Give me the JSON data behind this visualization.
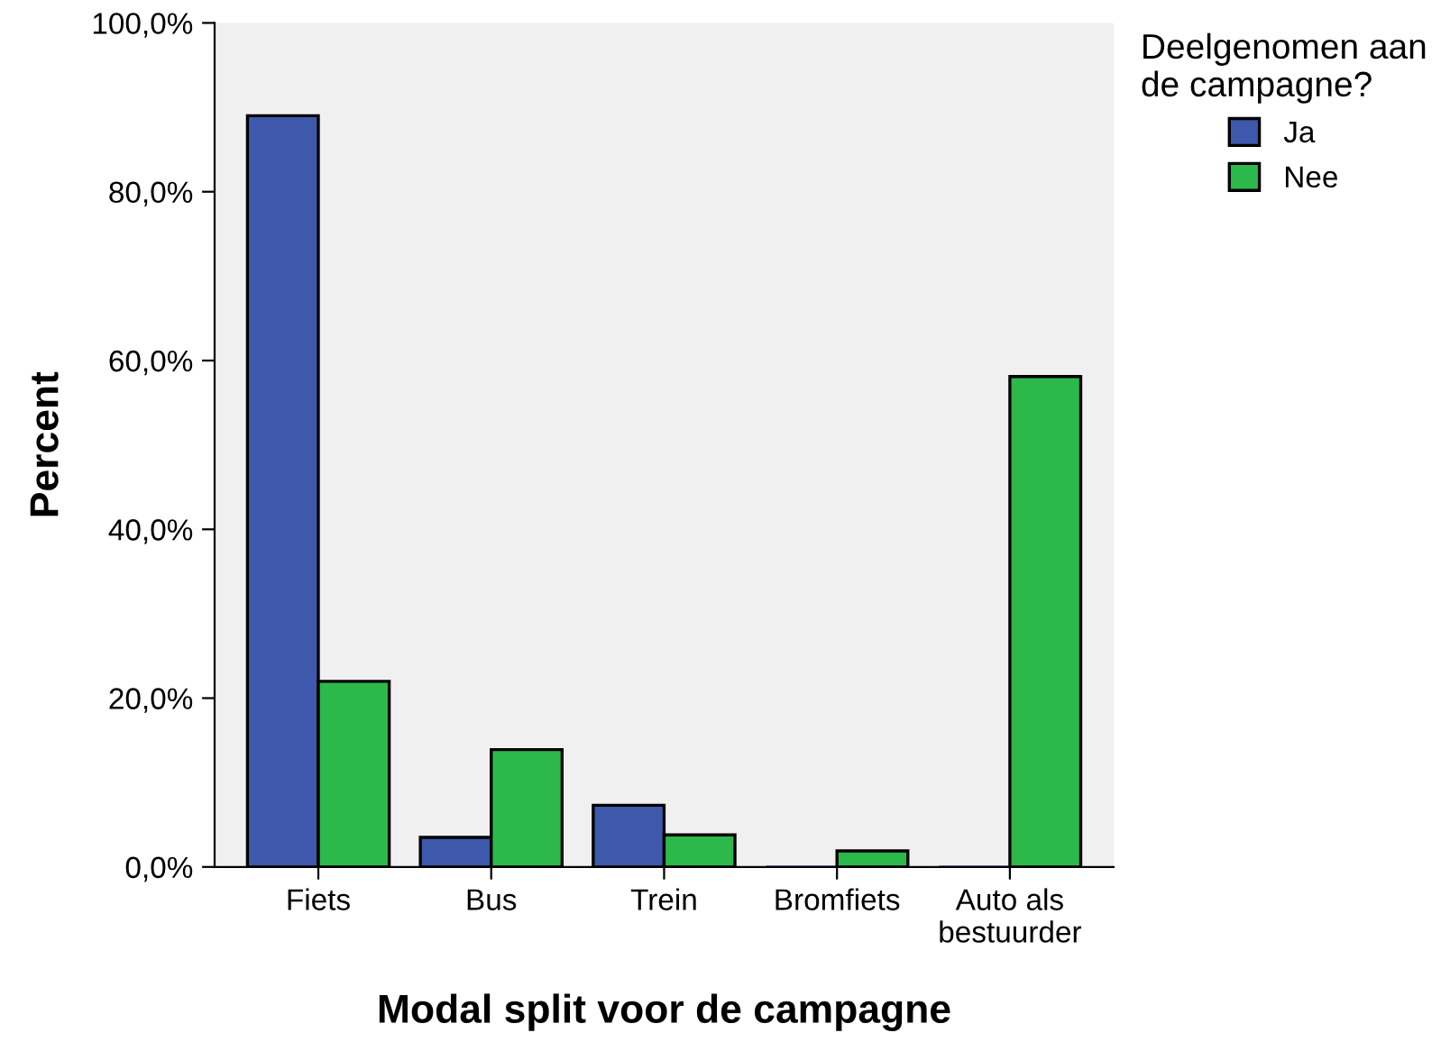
{
  "chart_data": {
    "type": "bar",
    "xlabel": "Modal split voor de campagne",
    "ylabel": "Percent",
    "legend_title": "Deelgenomen aan\nde campagne?",
    "categories": [
      "Fiets",
      "Bus",
      "Trein",
      "Bromfiets",
      "Auto als\nbestuurder"
    ],
    "series": [
      {
        "name": "Ja",
        "color": "#3e58ac",
        "values": [
          89.0,
          3.5,
          7.3,
          0,
          0
        ]
      },
      {
        "name": "Nee",
        "color": "#2db84b",
        "values": [
          22.0,
          13.9,
          3.8,
          1.9,
          58.1
        ]
      }
    ],
    "ylim": [
      0,
      100
    ],
    "yticks": [
      {
        "value": 0,
        "label": "0,0%"
      },
      {
        "value": 20,
        "label": "20,0%"
      },
      {
        "value": 40,
        "label": "40,0%"
      },
      {
        "value": 60,
        "label": "60,0%"
      },
      {
        "value": 80,
        "label": "80,0%"
      },
      {
        "value": 100,
        "label": "100,0%"
      }
    ],
    "grid": false,
    "legend": "top right"
  }
}
